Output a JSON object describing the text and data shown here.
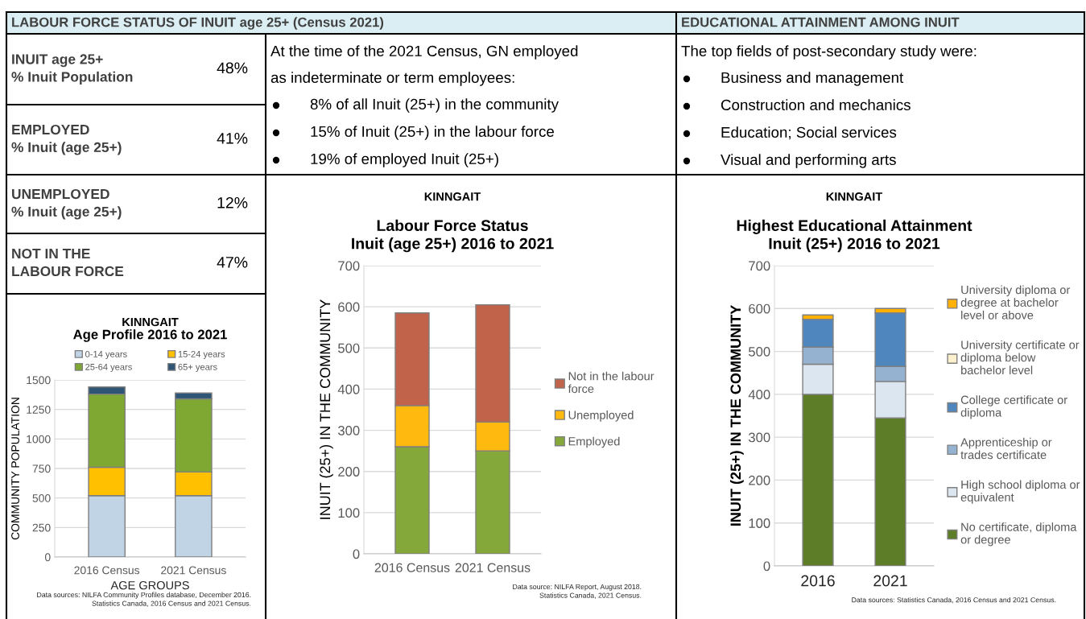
{
  "chart_data": [
    {
      "type": "other",
      "title": "LABOUR FORCE STATUS OF INUIT age 25+ (Census 2021)",
      "annotations": [
        "INUIT age 25+\n% Inuit Population",
        "48%",
        "EMPLOYED\n% Inuit (age 25+)",
        "41%",
        "UNEMPLOYED\n% Inuit (age 25+)",
        "12%",
        "NOT IN THE\nLABOUR FORCE",
        "47%"
      ]
    },
    {
      "type": "other",
      "annotations": [
        "At the time of the 2021 Census, GN employed\nas indeterminate or term employees:",
        "8% of all Inuit (25+) in the community",
        "15% of Inuit (25+) in the labour force",
        "19% of employed Inuit (25+)"
      ]
    },
    {
      "type": "other",
      "title": "EDUCATIONAL ATTAINMENT AMONG INUIT",
      "annotations": [
        "The top fields of post-secondary study were:",
        "Business and management",
        "Construction and mechanics",
        "Education; Social services",
        "Visual and performing arts"
      ]
    },
    {
      "type": "bar",
      "title": "KINNGAIT",
      "subtitle": "Age Profile 2016 to 2021",
      "xlabel": "AGE GROUPS",
      "ylabel": "COMMUNITY POPULATION",
      "categories": [
        "2016 Census",
        "2021 Census"
      ],
      "stacked": true,
      "ylim": [
        0,
        1500
      ],
      "yticks": [
        0,
        250,
        500,
        750,
        1000,
        1250,
        1500
      ],
      "grid": "y",
      "legend": "top",
      "series": [
        {
          "name": "0-14 years",
          "color": "#c0d4e6",
          "values": [
            520,
            520
          ]
        },
        {
          "name": "15-24 years",
          "color": "#ffc000",
          "values": [
            240,
            200
          ]
        },
        {
          "name": "25-64 years",
          "color": "#7ea832",
          "values": [
            620,
            620
          ]
        },
        {
          "name": "65+ years",
          "color": "#2e5576",
          "values": [
            60,
            50
          ]
        }
      ],
      "annotations": [
        "Data sources: NILFA Community Profiles database, December 2016.\nStatistics Canada, 2016 Census and 2021 Census."
      ]
    },
    {
      "type": "bar",
      "title": "KINNGAIT",
      "subtitle": "Labour Force Status\nInuit (age 25+) 2016 to 2021",
      "ylabel": "INUIT (25+) IN THE COMMUNITY",
      "categories": [
        "2016 Census",
        "2021 Census"
      ],
      "stacked": true,
      "ylim": [
        0,
        700
      ],
      "yticks": [
        0,
        100,
        200,
        300,
        400,
        500,
        600,
        700
      ],
      "grid": "y",
      "legend": "right",
      "series": [
        {
          "name": "Employed",
          "color": "#84a93a",
          "values": [
            260,
            250
          ]
        },
        {
          "name": "Unemployed",
          "color": "#ffb90f",
          "values": [
            100,
            70
          ]
        },
        {
          "name": "Not in the labour\nforce",
          "color": "#c0634a",
          "values": [
            225,
            285
          ]
        }
      ],
      "annotations": [
        "Data source: NILFA Report, August 2018.\nStatistics Canada, 2021 Census."
      ]
    },
    {
      "type": "bar",
      "title": "KINNGAIT",
      "subtitle": "Highest Educational Attainment\nInuit (25+) 2016 to 2021",
      "ylabel": "INUIT (25+) IN THE COMMUNITY",
      "categories": [
        "2016",
        "2021"
      ],
      "stacked": true,
      "ylim": [
        0,
        700
      ],
      "yticks": [
        0,
        100,
        200,
        300,
        400,
        500,
        600,
        700
      ],
      "grid": "y",
      "legend": "right",
      "series": [
        {
          "name": "No certificate, diploma\nor degree",
          "color": "#5e7d28",
          "values": [
            400,
            345
          ]
        },
        {
          "name": "High school diploma or\nequivalent",
          "color": "#dce6f0",
          "values": [
            70,
            85
          ]
        },
        {
          "name": "Apprenticeship or\ntrades certificate",
          "color": "#95b3d0",
          "values": [
            40,
            35
          ]
        },
        {
          "name": "College certificate or\ndiploma",
          "color": "#4f86bd",
          "values": [
            65,
            125
          ]
        },
        {
          "name": "University certificate or\ndiploma below\nbachelor level",
          "color": "#fdf0cc",
          "values": [
            0,
            0
          ]
        },
        {
          "name": "University diploma or\ndegree at bachelor\nlevel or above",
          "color": "#ffb000",
          "values": [
            10,
            10
          ]
        }
      ],
      "annotations": [
        "Data sources: Statistics Canada, 2016 Census and 2021 Census."
      ]
    }
  ]
}
